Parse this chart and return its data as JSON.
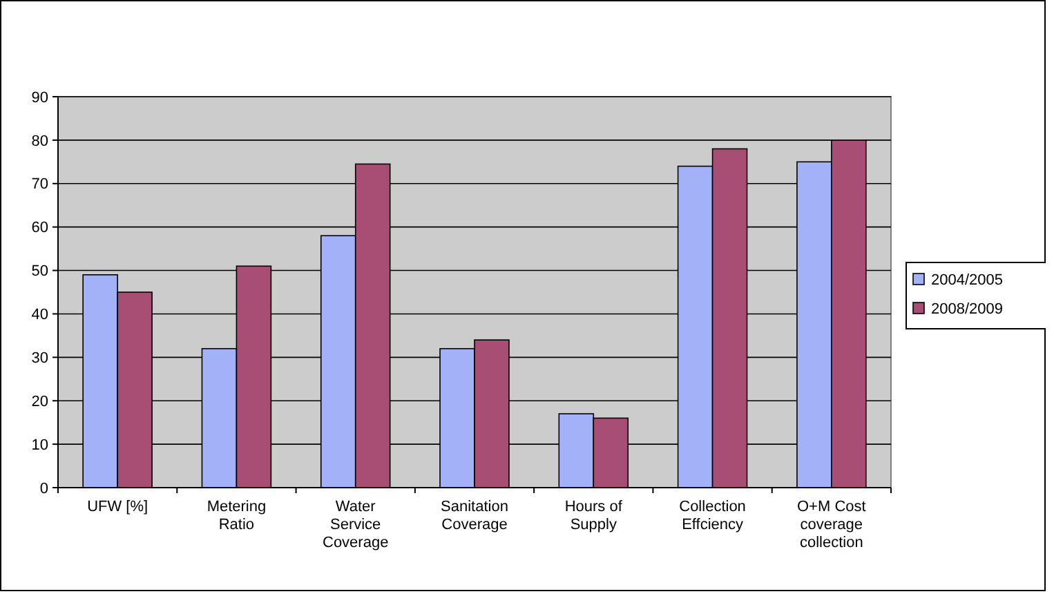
{
  "chart_data": {
    "type": "bar",
    "categories": [
      "UFW [%]",
      "Metering Ratio",
      "Water Service Coverage",
      "Sanitation Coverage",
      "Hours of Supply",
      "Collection Effciency",
      "O+M Cost coverage collection"
    ],
    "series": [
      {
        "name": "2004/2005",
        "color": "#a3b2f8",
        "values": [
          49,
          32,
          58,
          32,
          17,
          74,
          75
        ]
      },
      {
        "name": "2008/2009",
        "color": "#a84e74",
        "values": [
          45,
          51,
          74.5,
          34,
          16,
          78,
          80
        ]
      }
    ],
    "ylim": [
      0,
      90
    ],
    "yticks": [
      0,
      10,
      20,
      30,
      40,
      50,
      60,
      70,
      80,
      90
    ],
    "grid": "y",
    "legend": "right"
  }
}
